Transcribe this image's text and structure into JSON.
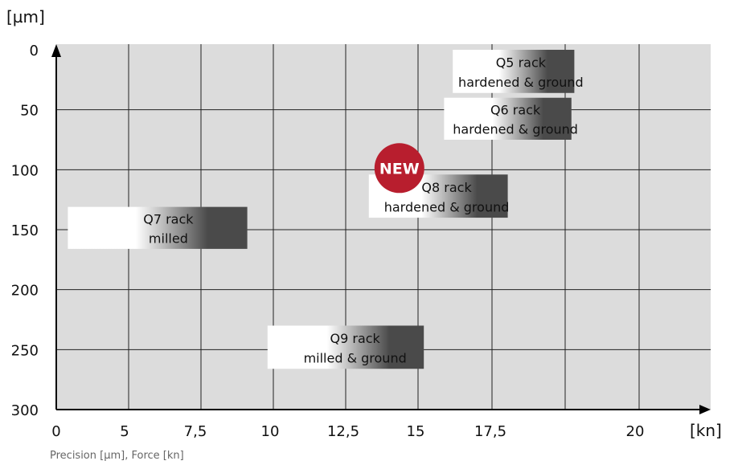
{
  "chart_data": {
    "type": "table",
    "y_unit_label": "[µm]",
    "x_unit_label": "[kn]",
    "y_ticks": [
      0,
      50,
      100,
      150,
      200,
      250,
      300
    ],
    "x_tick_labels": [
      "0",
      "5",
      "7,5",
      "10",
      "12,5",
      "15",
      "17,5",
      "20"
    ],
    "grid": true,
    "colors": {
      "plot_bg": "#dcdcdc",
      "grid": "#222222",
      "bar_dark": "#4a4a4a",
      "badge": "#b81e2e"
    },
    "bars": [
      {
        "line1": "Q5 rack",
        "line2": "hardened & ground",
        "y_range": [
          0,
          36
        ],
        "x_range": [
          13.7,
          17.9
        ]
      },
      {
        "line1": "Q6 rack",
        "line2": "hardened & ground",
        "y_range": [
          40,
          75
        ],
        "x_range": [
          13.4,
          17.8
        ]
      },
      {
        "line1": "Q8 rack",
        "line2": "hardened & ground",
        "y_range": [
          104,
          140
        ],
        "x_range": [
          10.8,
          15.6
        ]
      },
      {
        "line1": "Q7 rack",
        "line2": "milled",
        "y_range": [
          131,
          166
        ],
        "x_range": [
          0.4,
          6.6
        ]
      },
      {
        "line1": "Q9 rack",
        "line2": "milled & ground",
        "y_range": [
          230,
          266
        ],
        "x_range": [
          7.3,
          12.7
        ]
      }
    ],
    "badge": {
      "text": "NEW",
      "attached_to": "Q8 rack"
    }
  },
  "caption": "Precision [µm], Force [kn]"
}
